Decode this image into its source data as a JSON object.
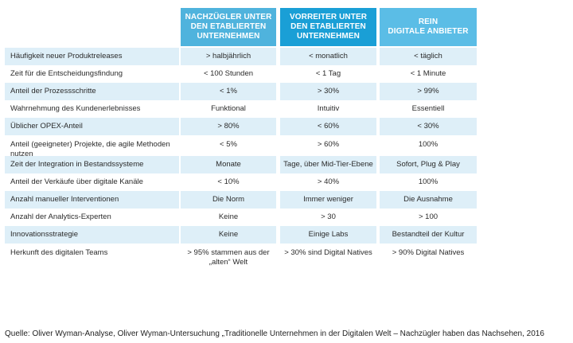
{
  "headers": [
    "NACHZÜGLER UNTER\nDEN ETABLIERTEN\nUNTERNEHMEN",
    "VORREITER UNTER\nDEN ETABLIERTEN\nUNTERNEHMEN",
    "REIN\nDIGITALE ANBIETER"
  ],
  "rows": [
    {
      "label": "Häufigkeit neuer Produktreleases",
      "values": [
        "> halbjährlich",
        "< monatlich",
        "< täglich"
      ]
    },
    {
      "label": "Zeit für die Entscheidungsfindung",
      "values": [
        "< 100 Stunden",
        "< 1 Tag",
        "< 1 Minute"
      ]
    },
    {
      "label": "Anteil der Prozessschritte",
      "values": [
        "< 1%",
        "> 30%",
        "> 99%"
      ]
    },
    {
      "label": "Wahrnehmung des Kundenerlebnisses",
      "values": [
        "Funktional",
        "Intuitiv",
        "Essentiell"
      ]
    },
    {
      "label": "Üblicher OPEX-Anteil",
      "values": [
        "> 80%",
        "< 60%",
        "< 30%"
      ]
    },
    {
      "label": "Anteil (geeigneter) Projekte, die agile Methoden nutzen",
      "values": [
        "< 5%",
        "> 60%",
        "100%"
      ]
    },
    {
      "label": "Zeit der Integration in Bestandssysteme",
      "values": [
        "Monate",
        "Tage, über Mid-Tier-Ebene",
        "Sofort, Plug & Play"
      ]
    },
    {
      "label": "Anteil der Verkäufe über digitale Kanäle",
      "values": [
        "< 10%",
        "> 40%",
        "100%"
      ]
    },
    {
      "label": "Anzahl manueller Interventionen",
      "values": [
        "Die Norm",
        "Immer weniger",
        "Die Ausnahme"
      ]
    },
    {
      "label": "Anzahl der Analytics-Experten",
      "values": [
        "Keine",
        "> 30",
        "> 100"
      ]
    },
    {
      "label": "Innovationsstrategie",
      "values": [
        "Keine",
        "Einige Labs",
        "Bestandteil der Kultur"
      ]
    },
    {
      "label": "Herkunft des digitalen Teams",
      "values": [
        "> 95% stammen aus der „alten“ Welt",
        "> 30% sind Digital Natives",
        "> 90% Digital Natives"
      ]
    }
  ],
  "source": "Quelle: Oliver Wyman-Analyse, Oliver Wyman-Untersuchung „Traditionelle Unternehmen in der Digitalen Welt – Nachzügler haben das Nachsehen, 2016"
}
